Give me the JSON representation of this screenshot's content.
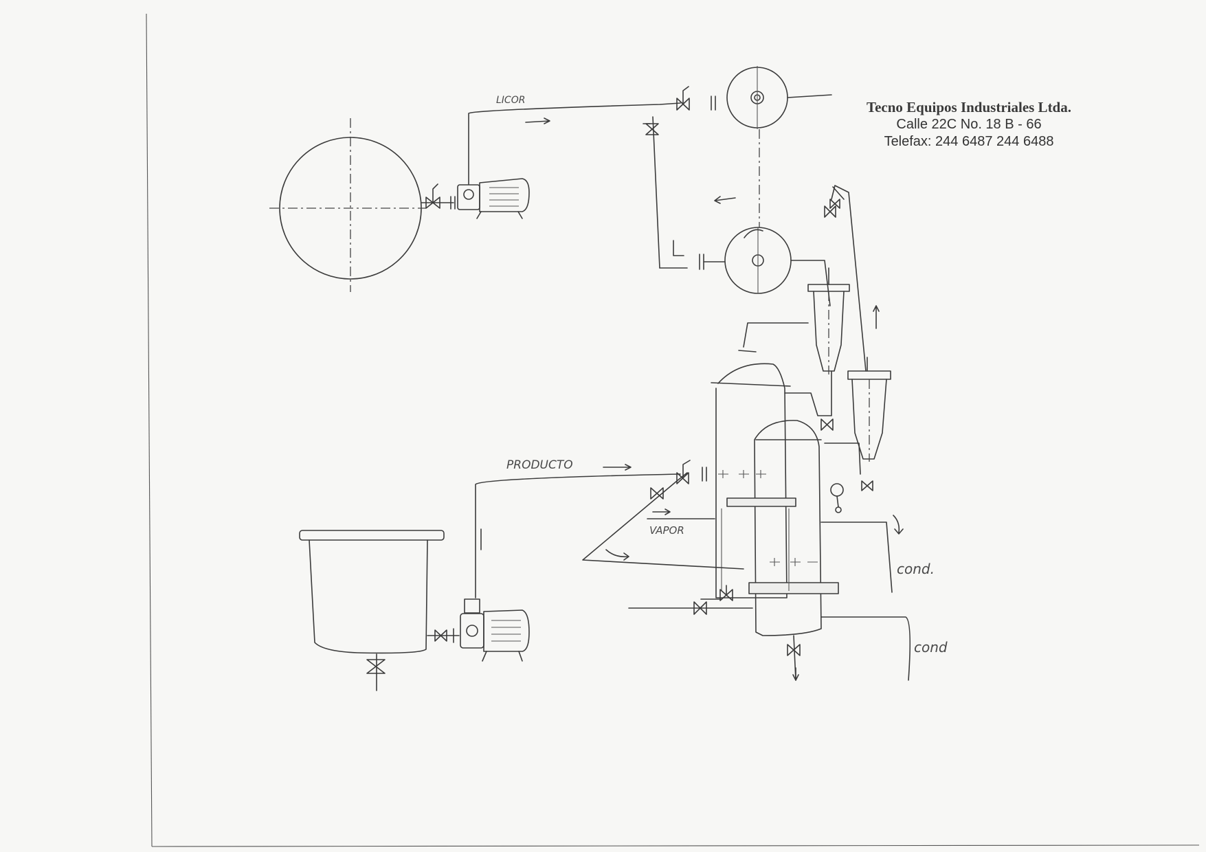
{
  "stamp": {
    "company": "Tecno Equipos Industriales Ltda.",
    "address": "Calle 22C No. 18 B - 66",
    "phone": "Telefax: 244 6487    244 6488"
  },
  "labels": {
    "licor": "LICOR",
    "producto": "PRODUCTO",
    "vapor": "VAPOR",
    "cond_upper": "cond.",
    "cond_lower": "cond"
  }
}
